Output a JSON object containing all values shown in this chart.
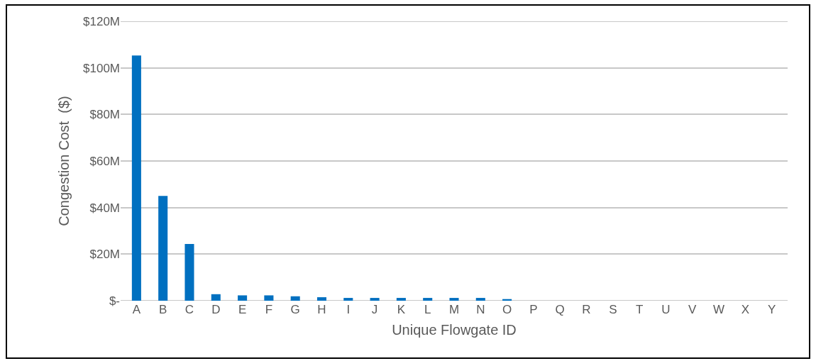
{
  "chart_data": {
    "type": "bar",
    "xlabel": "Unique Flowgate ID",
    "ylabel": "Congestion Cost  ($)",
    "categories": [
      "A",
      "B",
      "C",
      "D",
      "E",
      "F",
      "G",
      "H",
      "I",
      "J",
      "K",
      "L",
      "M",
      "N",
      "O",
      "P",
      "Q",
      "R",
      "S",
      "T",
      "U",
      "V",
      "W",
      "X",
      "Y"
    ],
    "values": [
      105.3,
      45,
      24.4,
      2.8,
      2.3,
      2.3,
      1.9,
      1.5,
      1.2,
      1.2,
      1.2,
      1.2,
      1.2,
      1.2,
      0.7,
      0,
      0,
      0,
      0,
      0,
      0,
      0,
      0,
      0,
      0
    ],
    "color": "#0070c0",
    "ylim": [
      0,
      120
    ],
    "yticks": [
      {
        "value": 0,
        "label": "$-"
      },
      {
        "value": 20,
        "label": "$20M"
      },
      {
        "value": 40,
        "label": "$40M"
      },
      {
        "value": 60,
        "label": "$60M"
      },
      {
        "value": 80,
        "label": "$80M"
      },
      {
        "value": 100,
        "label": "$100M"
      },
      {
        "value": 120,
        "label": "$120M"
      }
    ],
    "grid": "y"
  }
}
